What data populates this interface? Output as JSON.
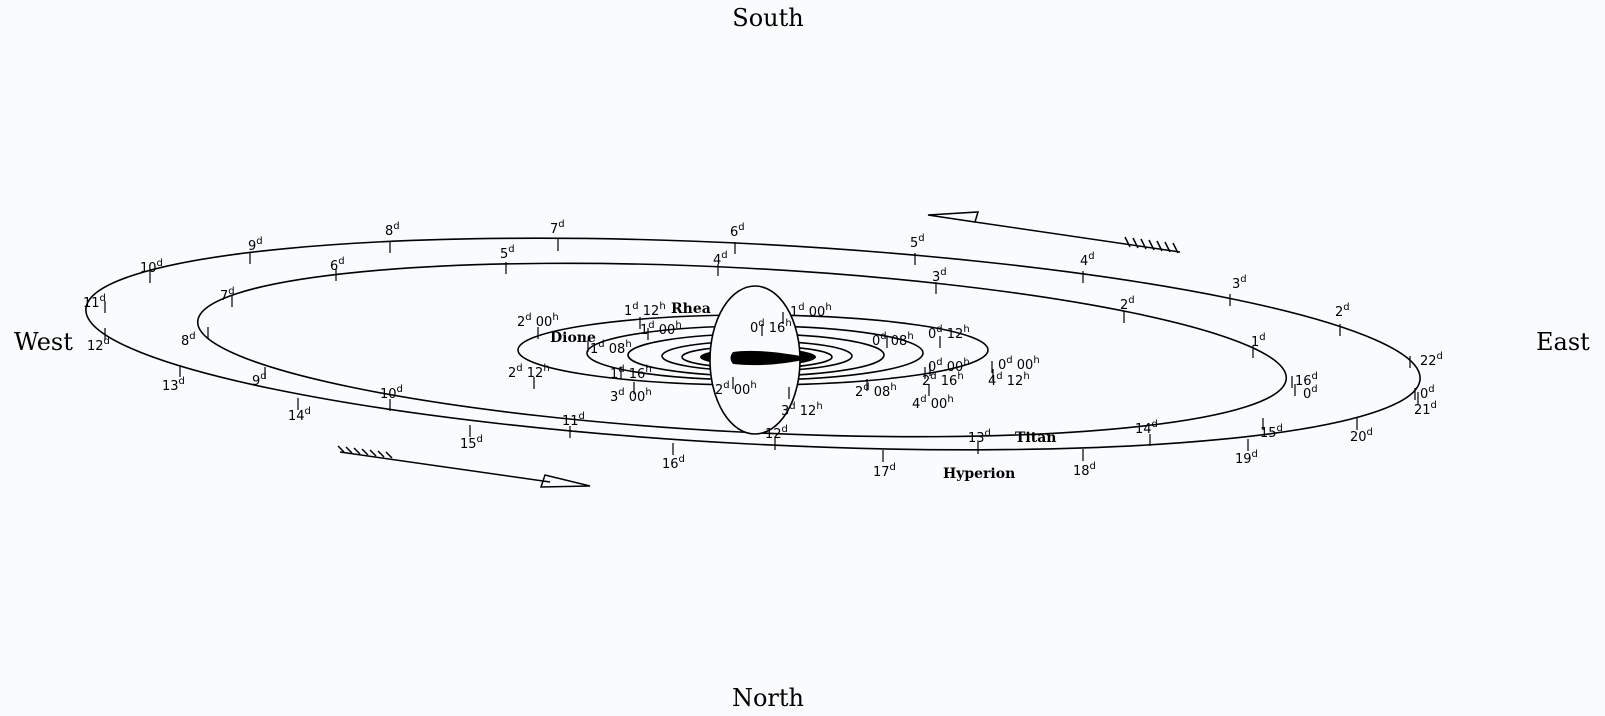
{
  "directions": {
    "south": "South",
    "north": "North",
    "west": "West",
    "east": "East"
  },
  "moons": {
    "rhea": "Rhea",
    "dione": "Dione",
    "titan": "Titan",
    "hyperion": "Hyperion"
  },
  "hyperion_ticks": [
    "0",
    "2",
    "3",
    "4",
    "5",
    "6",
    "7",
    "8",
    "9",
    "10",
    "11",
    "12",
    "13",
    "14",
    "15",
    "16",
    "17",
    "18",
    "19",
    "20",
    "21",
    "22"
  ],
  "titan_ticks": [
    "0",
    "1",
    "2",
    "3",
    "4",
    "5",
    "6",
    "7",
    "8",
    "9",
    "10",
    "11",
    "12",
    "13",
    "14",
    "15",
    "16"
  ],
  "rhea_ticks": [
    "0 00",
    "1 00",
    "1 12",
    "2 00",
    "2 12",
    "3 00",
    "3 12",
    "4 00",
    "4 12"
  ],
  "dione_ticks": [
    "0 08",
    "0 16",
    "1 00",
    "1 08",
    "1 16",
    "2 00",
    "2 08",
    "2 16"
  ],
  "colors": {
    "ink": "#000000",
    "background": "#fafbfd"
  }
}
